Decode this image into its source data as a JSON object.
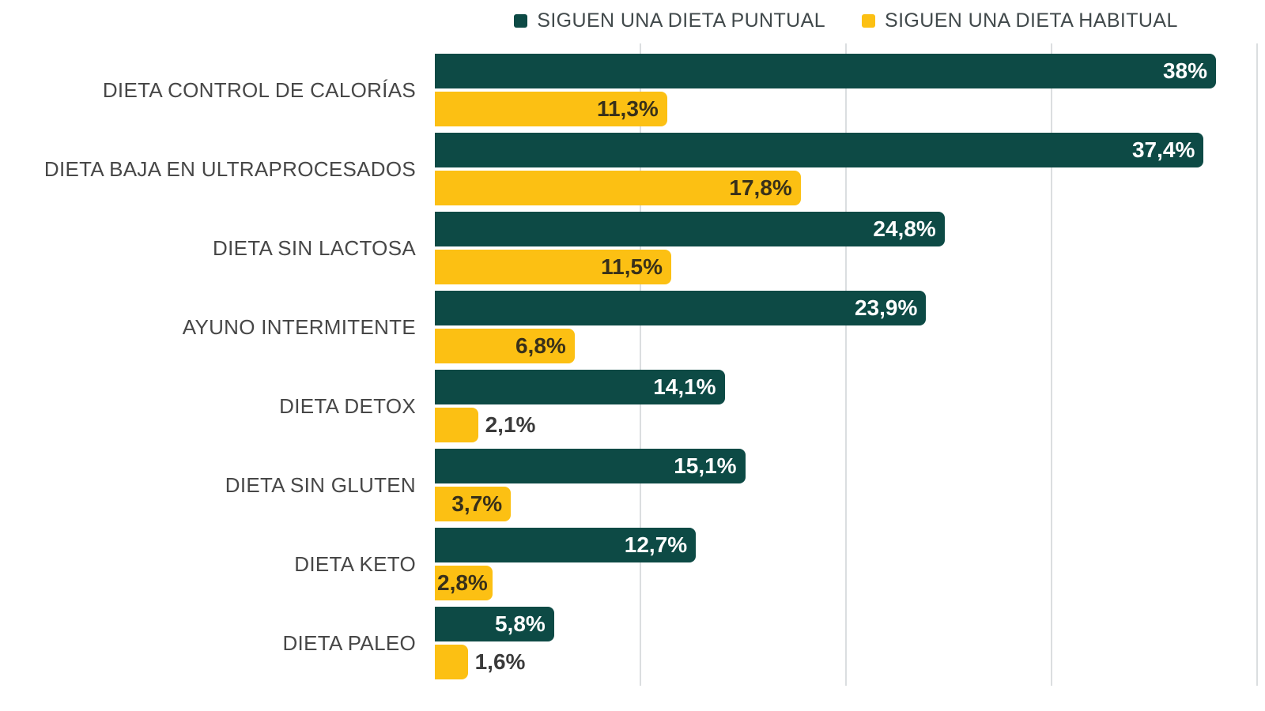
{
  "legend": [
    {
      "label": "SIGUEN UNA DIETA PUNTUAL",
      "color": "#0d4a45"
    },
    {
      "label": "SIGUEN UNA DIETA HABITUAL",
      "color": "#fcc013"
    }
  ],
  "chart_data": {
    "type": "bar",
    "orientation": "horizontal",
    "title": "",
    "xlabel": "",
    "ylabel": "",
    "xlim": [
      0,
      40
    ],
    "x_gridlines": [
      10,
      20,
      30,
      40
    ],
    "grid_on": true,
    "legend_position": "top",
    "outside_label_color": "#3a3a3a",
    "categories": [
      "DIETA CONTROL DE CALORÍAS",
      "DIETA BAJA EN ULTRAPROCESADOS",
      "DIETA SIN LACTOSA",
      "AYUNO INTERMITENTE",
      "DIETA DETOX",
      "DIETA SIN GLUTEN",
      "DIETA KETO",
      "DIETA PALEO"
    ],
    "series": [
      {
        "name": "SIGUEN UNA DIETA PUNTUAL",
        "color": "#0d4a45",
        "label_color": "#ffffff",
        "values": [
          38,
          37.4,
          24.8,
          23.9,
          14.1,
          15.1,
          12.7,
          5.8
        ],
        "labels": [
          "38%",
          "37,4%",
          "24,8%",
          "23,9%",
          "14,1%",
          "15,1%",
          "12,7%",
          "5,8%"
        ],
        "label_positions": [
          "inside-right",
          "inside-right",
          "inside-right",
          "inside-right",
          "inside-right",
          "inside-right",
          "inside-right",
          "inside-right"
        ]
      },
      {
        "name": "SIGUEN UNA DIETA HABITUAL",
        "color": "#fcc013",
        "label_color": "#38301a",
        "values": [
          11.3,
          17.8,
          11.5,
          6.8,
          2.1,
          3.7,
          2.8,
          1.6
        ],
        "labels": [
          "11,3%",
          "17,8%",
          "11,5%",
          "6,8%",
          "2,1%",
          "3,7%",
          "2,8%",
          "1,6%"
        ],
        "label_positions": [
          "inside-right",
          "inside-right",
          "inside-right",
          "inside-right",
          "outside",
          "inside-right",
          "inside-left",
          "outside"
        ]
      }
    ]
  }
}
